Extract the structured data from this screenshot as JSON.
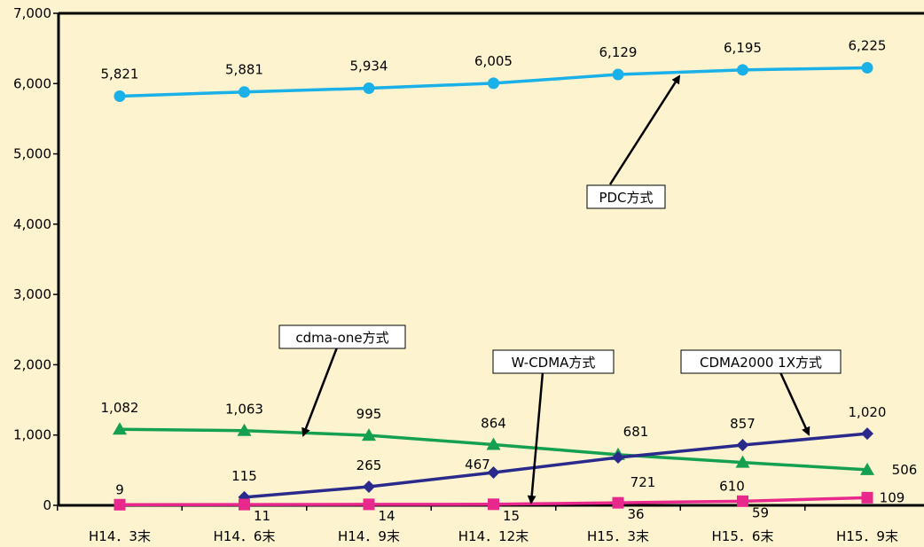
{
  "chart_data": {
    "type": "line",
    "title": "",
    "xlabel": "",
    "ylabel": "",
    "ylim": [
      0,
      7000
    ],
    "yticks": [
      0,
      1000,
      2000,
      3000,
      4000,
      5000,
      6000,
      7000
    ],
    "ytick_labels": [
      "0",
      "1,000",
      "2,000",
      "3,000",
      "4,000",
      "5,000",
      "6,000",
      "7,000"
    ],
    "categories": [
      "H14．3末",
      "H14．6末",
      "H14．9末",
      "H14．12末",
      "H15．3末",
      "H15．6末",
      "H15．9末"
    ],
    "grid": false,
    "series": [
      {
        "name": "PDC方式",
        "color": "#1ab0e8",
        "marker": "circle",
        "values": [
          5821,
          5881,
          5934,
          6005,
          6129,
          6195,
          6225
        ],
        "labels": [
          "5,821",
          "5,881",
          "5,934",
          "6,005",
          "6,129",
          "6,195",
          "6,225"
        ]
      },
      {
        "name": "cdma-one方式",
        "color": "#14a050",
        "marker": "triangle",
        "values": [
          1082,
          1063,
          995,
          864,
          721,
          610,
          506
        ],
        "labels": [
          "1,082",
          "1,063",
          "995",
          "864",
          "721",
          "610",
          "506"
        ]
      },
      {
        "name": "CDMA2000 1X方式",
        "color": "#2a2a8c",
        "marker": "diamond",
        "values": [
          null,
          115,
          265,
          467,
          681,
          857,
          1020
        ],
        "labels": [
          "",
          "115",
          "265",
          "467",
          "681",
          "857",
          "1,020"
        ]
      },
      {
        "name": "W-CDMA方式",
        "color": "#e8288c",
        "marker": "square",
        "values": [
          9,
          11,
          14,
          15,
          36,
          59,
          109
        ],
        "labels": [
          "9",
          "11",
          "14",
          "15",
          "36",
          "59",
          "109"
        ]
      }
    ]
  }
}
